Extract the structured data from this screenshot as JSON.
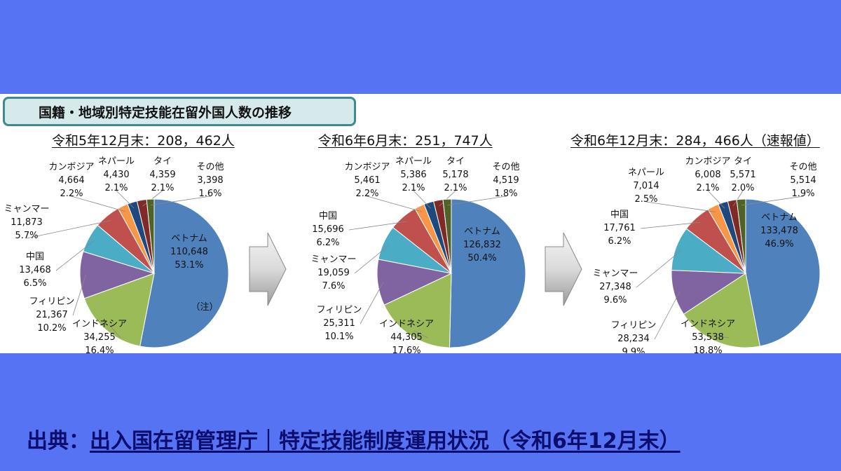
{
  "heading": "国籍・地域別特定技能在留外国人数の推移",
  "source": {
    "prefix": "出典：",
    "link_text": "出入国在留管理庁｜特定技能制度運用状況（令和6年12月末）"
  },
  "colors": {
    "background": "#5573f3",
    "slices": [
      "#4f81bd",
      "#9bbb59",
      "#8064a2",
      "#4bacc6",
      "#c0504d",
      "#f79646",
      "#1f497d",
      "#7f2a27",
      "#4f6228"
    ]
  },
  "chart_data": [
    {
      "type": "pie",
      "title": "令和5年12月末：208，462人",
      "slices": [
        {
          "label": "ベトナム",
          "value": 110648,
          "value_label": "110,648",
          "percent": "53.1%",
          "note": "（注）"
        },
        {
          "label": "インドネシア",
          "value": 34255,
          "value_label": "34,255",
          "percent": "16.4%"
        },
        {
          "label": "フィリピン",
          "value": 21367,
          "value_label": "21,367",
          "percent": "10.2%"
        },
        {
          "label": "中国",
          "value": 13468,
          "value_label": "13,468",
          "percent": "6.5%"
        },
        {
          "label": "ミャンマー",
          "value": 11873,
          "value_label": "11,873",
          "percent": "5.7%"
        },
        {
          "label": "カンボジア",
          "value": 4664,
          "value_label": "4,664",
          "percent": "2.2%"
        },
        {
          "label": "ネパール",
          "value": 4430,
          "value_label": "4,430",
          "percent": "2.1%"
        },
        {
          "label": "タイ",
          "value": 4359,
          "value_label": "4,359",
          "percent": "2.1%"
        },
        {
          "label": "その他",
          "value": 3398,
          "value_label": "3,398",
          "percent": "1.6%"
        }
      ]
    },
    {
      "type": "pie",
      "title": "令和6年6月末：251，747人",
      "slices": [
        {
          "label": "ベトナム",
          "value": 126832,
          "value_label": "126,832",
          "percent": "50.4%"
        },
        {
          "label": "インドネシア",
          "value": 44305,
          "value_label": "44,305",
          "percent": "17.6%"
        },
        {
          "label": "フィリピン",
          "value": 25311,
          "value_label": "25,311",
          "percent": "10.1%"
        },
        {
          "label": "ミャンマー",
          "value": 19059,
          "value_label": "19,059",
          "percent": "7.6%"
        },
        {
          "label": "中国",
          "value": 15696,
          "value_label": "15,696",
          "percent": "6.2%"
        },
        {
          "label": "カンボジア",
          "value": 5461,
          "value_label": "5,461",
          "percent": "2.2%"
        },
        {
          "label": "ネパール",
          "value": 5386,
          "value_label": "5,386",
          "percent": "2.1%"
        },
        {
          "label": "タイ",
          "value": 5178,
          "value_label": "5,178",
          "percent": "2.1%"
        },
        {
          "label": "その他",
          "value": 4519,
          "value_label": "4,519",
          "percent": "1.8%"
        }
      ]
    },
    {
      "type": "pie",
      "title": "令和6年12月末：284，466人（速報値）",
      "slices": [
        {
          "label": "ベトナム",
          "value": 133478,
          "value_label": "133,478",
          "percent": "46.9%"
        },
        {
          "label": "インドネシア",
          "value": 53538,
          "value_label": "53,538",
          "percent": "18.8%"
        },
        {
          "label": "フィリピン",
          "value": 28234,
          "value_label": "28,234",
          "percent": "9.9%"
        },
        {
          "label": "ミャンマー",
          "value": 27348,
          "value_label": "27,348",
          "percent": "9.6%"
        },
        {
          "label": "中国",
          "value": 17761,
          "value_label": "17,761",
          "percent": "6.2%"
        },
        {
          "label": "ネパール",
          "value": 7014,
          "value_label": "7,014",
          "percent": "2.5%"
        },
        {
          "label": "カンボジア",
          "value": 6008,
          "value_label": "6,008",
          "percent": "2.1%"
        },
        {
          "label": "タイ",
          "value": 5571,
          "value_label": "5,571",
          "percent": "2.0%"
        },
        {
          "label": "その他",
          "value": 5514,
          "value_label": "5,514",
          "percent": "1.9%"
        }
      ]
    }
  ]
}
